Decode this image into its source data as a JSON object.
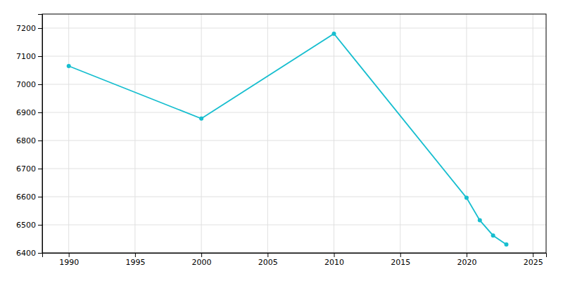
{
  "chart_data": {
    "type": "line",
    "x": [
      1990,
      2000,
      2010,
      2020,
      2021,
      2022,
      2023
    ],
    "values": [
      7065,
      6878,
      7180,
      6596,
      6516,
      6462,
      6430
    ],
    "color": "#17BECF",
    "marker": "circle",
    "xlim": [
      1988,
      2026
    ],
    "ylim": [
      6400,
      7250
    ],
    "xticks": [
      1990,
      1995,
      2000,
      2005,
      2010,
      2015,
      2020,
      2025
    ],
    "yticks": [
      6400,
      6500,
      6600,
      6700,
      6800,
      6900,
      7000,
      7100,
      7200
    ],
    "grid": true
  }
}
